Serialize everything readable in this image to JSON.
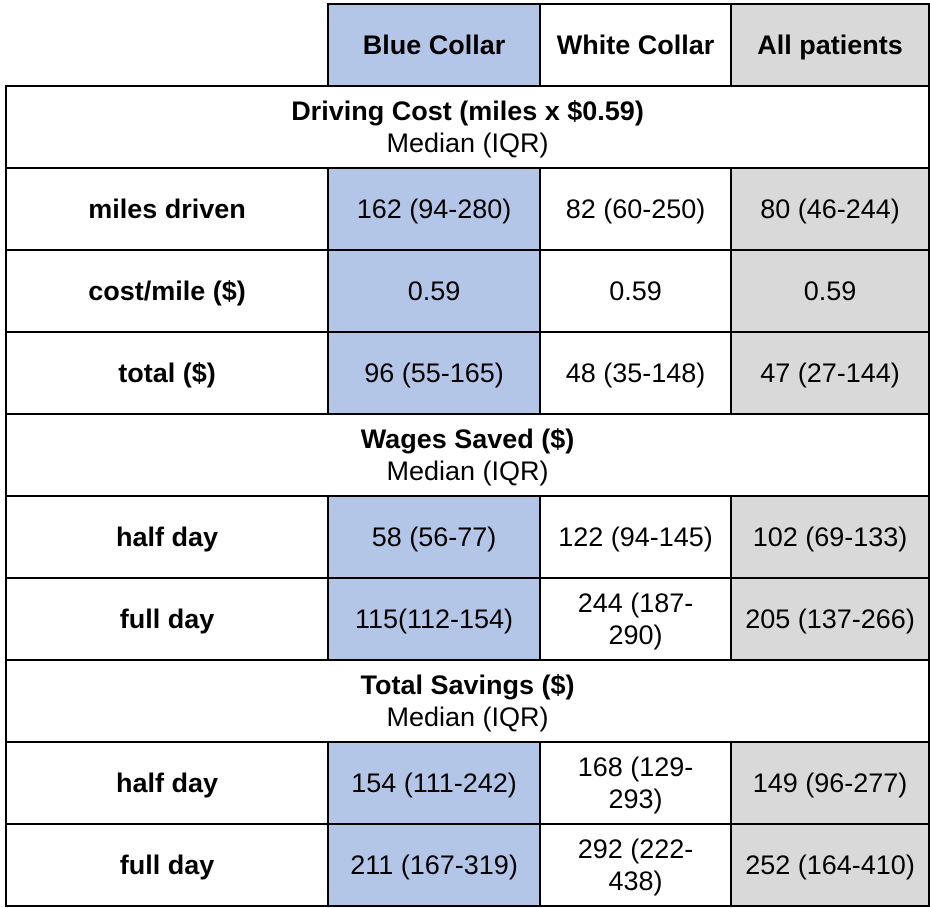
{
  "header": {
    "columns": [
      "Blue Collar",
      "White Collar",
      "All patients"
    ]
  },
  "sections": [
    {
      "title": "Driving Cost (miles x $0.59)",
      "subtitle": "Median (IQR)",
      "rows": [
        {
          "label": "miles driven",
          "values": [
            "162 (94-280)",
            "82 (60-250)",
            "80 (46-244)"
          ]
        },
        {
          "label": "cost/mile ($)",
          "values": [
            "0.59",
            "0.59",
            "0.59"
          ]
        },
        {
          "label": "total ($)",
          "values": [
            "96 (55-165)",
            "48 (35-148)",
            "47 (27-144)"
          ]
        }
      ]
    },
    {
      "title": "Wages Saved ($)",
      "subtitle": "Median (IQR)",
      "rows": [
        {
          "label": "half day",
          "values": [
            "58 (56-77)",
            "122 (94-145)",
            "102 (69-133)"
          ]
        },
        {
          "label": "full day",
          "values": [
            "115(112-154)",
            "244 (187-290)",
            "205 (137-266)"
          ]
        }
      ]
    },
    {
      "title": "Total Savings ($)",
      "subtitle": "Median (IQR)",
      "rows": [
        {
          "label": "half day",
          "values": [
            "154 (111-242)",
            "168 (129-293)",
            "149 (96-277)"
          ]
        },
        {
          "label": "full day",
          "values": [
            "211 (167-319)",
            "292 (222-438)",
            "252 (164-410)"
          ]
        }
      ]
    }
  ]
}
